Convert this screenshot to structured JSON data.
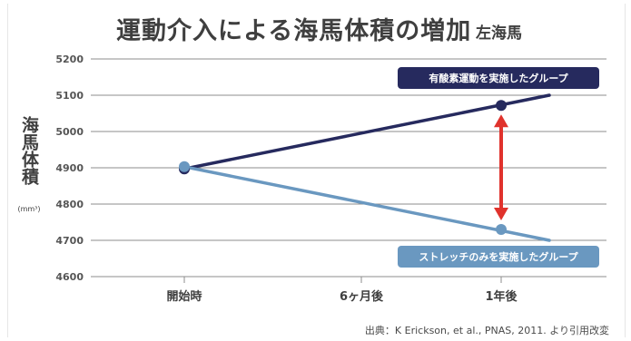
{
  "chart_data": {
    "type": "line",
    "title": "運動介入による海馬体積の増加",
    "subtitle": "左海馬",
    "ylabel": "海馬体積",
    "yunit": "(mm³)",
    "categories": [
      "開始時",
      "6ヶ月後",
      "1年後"
    ],
    "yticks": [
      4600,
      4700,
      4800,
      4900,
      5000,
      5100,
      5200
    ],
    "ylim": [
      4600,
      5200
    ],
    "grid": true,
    "series": [
      {
        "name": "有酸素運動を実施したグループ",
        "color": "#262a5e",
        "points": [
          {
            "x": 0,
            "y": 4897
          },
          {
            "x": 2,
            "y": 5072
          }
        ],
        "trend_end": {
          "x": 2.5,
          "y": 5100
        }
      },
      {
        "name": "ストレッチのみを実施したグループ",
        "color": "#6a98c0",
        "points": [
          {
            "x": 0,
            "y": 4903
          },
          {
            "x": 2,
            "y": 4730
          }
        ],
        "trend_end": {
          "x": 2.5,
          "y": 4700
        }
      }
    ],
    "annotation_arrow_color": "#e0322c",
    "source": "出典：K Erickson, et al., PNAS, 2011. より引用改変"
  }
}
